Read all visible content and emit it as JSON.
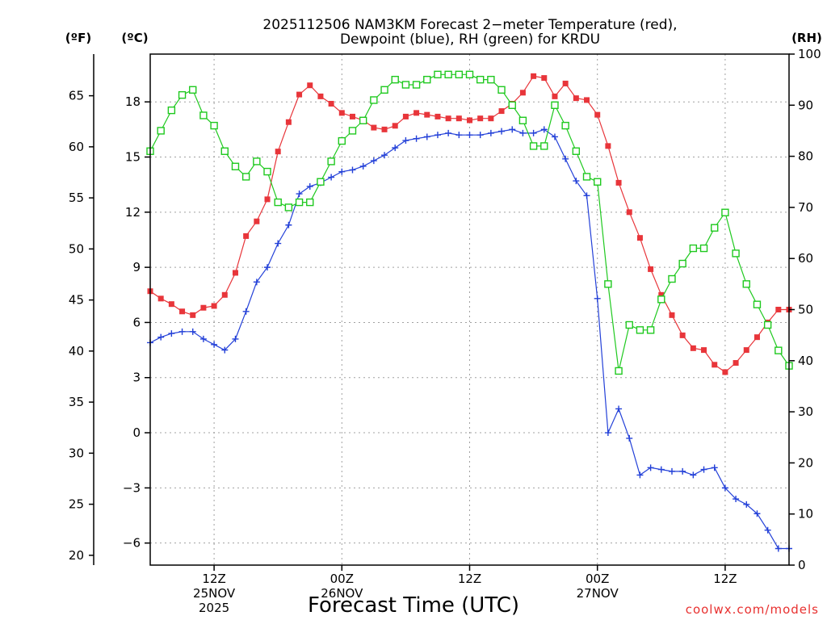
{
  "chart_data": {
    "type": "line",
    "title_line1": "2025112506 NAM3KM Forecast 2−meter Temperature (red),",
    "title_line2": "Dewpoint (blue), RH (green) for KRDU",
    "xlabel": "Forecast Time (UTC)",
    "credit": "coolwx.com/models",
    "units": {
      "fahrenheit": "(ºF)",
      "celsius": "(ºC)",
      "rh": "(RH)"
    },
    "x_range_hours": [
      0,
      60
    ],
    "x_ticks": [
      {
        "hour": 6,
        "label1": "12Z",
        "label2": "25NOV",
        "label3": "2025"
      },
      {
        "hour": 18,
        "label1": "00Z",
        "label2": "26NOV",
        "label3": ""
      },
      {
        "hour": 30,
        "label1": "12Z",
        "label2": "",
        "label3": ""
      },
      {
        "hour": 42,
        "label1": "00Z",
        "label2": "27NOV",
        "label3": ""
      },
      {
        "hour": 54,
        "label1": "12Z",
        "label2": "",
        "label3": ""
      }
    ],
    "y_celsius": {
      "range": [
        -7.2,
        20.6
      ],
      "ticks": [
        -6,
        -3,
        0,
        3,
        6,
        9,
        12,
        15,
        18
      ],
      "tick_labels": [
        "−6",
        "−3",
        "0",
        "3",
        "6",
        "9",
        "12",
        "15",
        "18"
      ]
    },
    "y_fahrenheit": {
      "ticks": [
        20,
        25,
        30,
        35,
        40,
        45,
        50,
        55,
        60,
        65
      ],
      "tick_labels": [
        "20",
        "25",
        "30",
        "35",
        "40",
        "45",
        "50",
        "55",
        "60",
        "65"
      ]
    },
    "y_rh": {
      "range": [
        0,
        100
      ],
      "ticks": [
        0,
        10,
        20,
        30,
        40,
        50,
        60,
        70,
        80,
        90,
        100
      ],
      "tick_labels": [
        "0",
        "10",
        "20",
        "30",
        "40",
        "50",
        "60",
        "70",
        "80",
        "90",
        "100"
      ]
    },
    "series": [
      {
        "name": "Temperature",
        "unit": "C",
        "color": "#e8353a",
        "marker": "filled-square",
        "x": [
          0,
          1,
          2,
          3,
          4,
          5,
          6,
          7,
          8,
          9,
          10,
          11,
          12,
          13,
          14,
          15,
          16,
          17,
          18,
          19,
          20,
          21,
          22,
          23,
          24,
          25,
          26,
          27,
          28,
          29,
          30,
          31,
          32,
          33,
          34,
          35,
          36,
          37,
          38,
          39,
          40,
          41,
          42,
          43,
          44,
          45,
          46,
          47,
          48,
          49,
          50,
          51,
          52,
          53,
          54,
          55,
          56,
          57,
          58,
          59,
          60
        ],
        "values": [
          7.7,
          7.3,
          7.0,
          6.6,
          6.4,
          6.8,
          6.9,
          7.5,
          8.7,
          10.7,
          11.5,
          12.7,
          15.3,
          16.9,
          18.4,
          18.9,
          18.3,
          17.9,
          17.4,
          17.2,
          17.0,
          16.6,
          16.5,
          16.7,
          17.2,
          17.4,
          17.3,
          17.2,
          17.1,
          17.1,
          17.0,
          17.1,
          17.1,
          17.5,
          17.9,
          18.5,
          19.4,
          19.3,
          18.3,
          19.0,
          18.2,
          18.1,
          17.3,
          15.6,
          13.6,
          12.0,
          10.6,
          8.9,
          7.5,
          6.4,
          5.3,
          4.6,
          4.5,
          3.7,
          3.3,
          3.8,
          4.5,
          5.2,
          6.0,
          6.7,
          6.7
        ]
      },
      {
        "name": "Dewpoint",
        "unit": "C",
        "color": "#2340d8",
        "marker": "plus",
        "x": [
          0,
          1,
          2,
          3,
          4,
          5,
          6,
          7,
          8,
          9,
          10,
          11,
          12,
          13,
          14,
          15,
          16,
          17,
          18,
          19,
          20,
          21,
          22,
          23,
          24,
          25,
          26,
          27,
          28,
          29,
          30,
          31,
          32,
          33,
          34,
          35,
          36,
          37,
          38,
          39,
          40,
          41,
          42,
          43,
          44,
          45,
          46,
          47,
          48,
          49,
          50,
          51,
          52,
          53,
          54,
          55,
          56,
          57,
          58,
          59,
          60
        ],
        "values": [
          4.9,
          5.2,
          5.4,
          5.5,
          5.5,
          5.1,
          4.8,
          4.5,
          5.1,
          6.6,
          8.2,
          9.0,
          10.3,
          11.3,
          13.0,
          13.4,
          13.6,
          13.9,
          14.2,
          14.3,
          14.5,
          14.8,
          15.1,
          15.5,
          15.9,
          16.0,
          16.1,
          16.2,
          16.3,
          16.2,
          16.2,
          16.2,
          16.3,
          16.4,
          16.5,
          16.3,
          16.3,
          16.5,
          16.1,
          14.9,
          13.7,
          12.9,
          7.3,
          0.0,
          1.3,
          -0.3,
          -2.3,
          -1.9,
          -2.0,
          -2.1,
          -2.1,
          -2.3,
          -2.0,
          -1.9,
          -3.0,
          -3.6,
          -3.9,
          -4.4,
          -5.3,
          -6.3,
          -6.3
        ]
      },
      {
        "name": "RH",
        "unit": "%",
        "color": "#1fc91f",
        "marker": "open-square",
        "x": [
          0,
          1,
          2,
          3,
          4,
          5,
          6,
          7,
          8,
          9,
          10,
          11,
          12,
          13,
          14,
          15,
          16,
          17,
          18,
          19,
          20,
          21,
          22,
          23,
          24,
          25,
          26,
          27,
          28,
          29,
          30,
          31,
          32,
          33,
          34,
          35,
          36,
          37,
          38,
          39,
          40,
          41,
          42,
          43,
          44,
          45,
          46,
          47,
          48,
          49,
          50,
          51,
          52,
          53,
          54,
          55,
          56,
          57,
          58,
          59,
          60
        ],
        "values": [
          81,
          85,
          89,
          92,
          93,
          88,
          86,
          81,
          78,
          76,
          79,
          77,
          71,
          70,
          71,
          71,
          75,
          79,
          83,
          85,
          87,
          91,
          93,
          95,
          94,
          94,
          95,
          96,
          96,
          96,
          96,
          95,
          95,
          93,
          90,
          87,
          82,
          82,
          90,
          86,
          81,
          76,
          75,
          55,
          38,
          47,
          46,
          46,
          52,
          56,
          59,
          62,
          62,
          66,
          69,
          61,
          55,
          51,
          47,
          42,
          39
        ]
      }
    ]
  }
}
